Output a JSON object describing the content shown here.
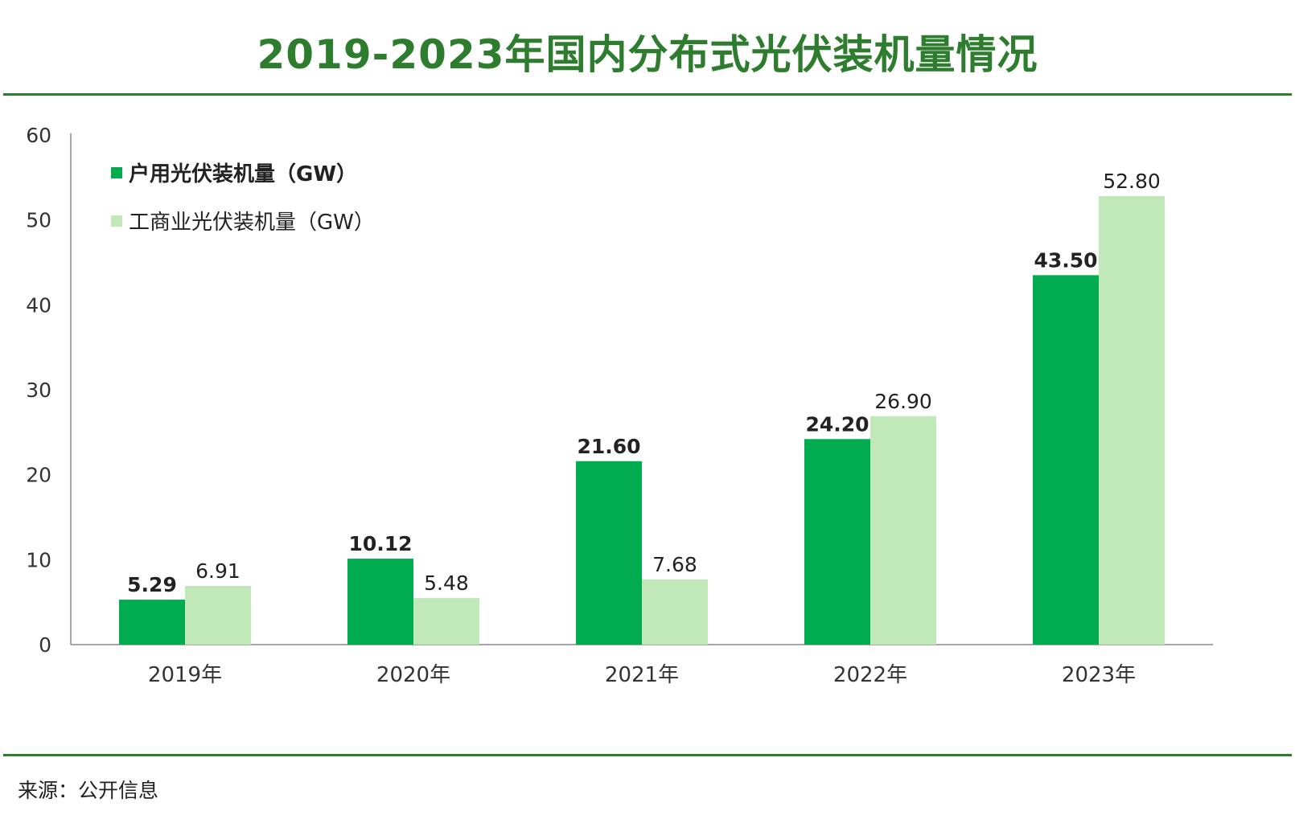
{
  "title": "2019-2023年国内分布式光伏装机量情况",
  "source": "来源：公开信息",
  "colors": {
    "title": "#2e7d2e",
    "rule": "#2e7d2e",
    "series1": "#00ac4f",
    "series2": "#c1e8b8",
    "axis": "#888888"
  },
  "chart_data": {
    "type": "bar",
    "categories": [
      "2019年",
      "2020年",
      "2021年",
      "2022年",
      "2023年"
    ],
    "series": [
      {
        "name": "户用光伏装机量（GW）",
        "values": [
          5.29,
          10.12,
          21.6,
          24.2,
          43.5
        ],
        "labels": [
          "5.29",
          "10.12",
          "21.60",
          "24.20",
          "43.50"
        ],
        "color": "#00ac4f",
        "label_bold": true
      },
      {
        "name": "工商业光伏装机量（GW）",
        "values": [
          6.91,
          5.48,
          7.68,
          26.9,
          52.8
        ],
        "labels": [
          "6.91",
          "5.48",
          "7.68",
          "26.90",
          "52.80"
        ],
        "color": "#c1e8b8",
        "label_bold": false
      }
    ],
    "ylim": [
      0,
      60
    ],
    "yticks": [
      "0",
      "10",
      "20",
      "30",
      "40",
      "50",
      "60"
    ],
    "legend_position": "top-left",
    "grid": false
  }
}
